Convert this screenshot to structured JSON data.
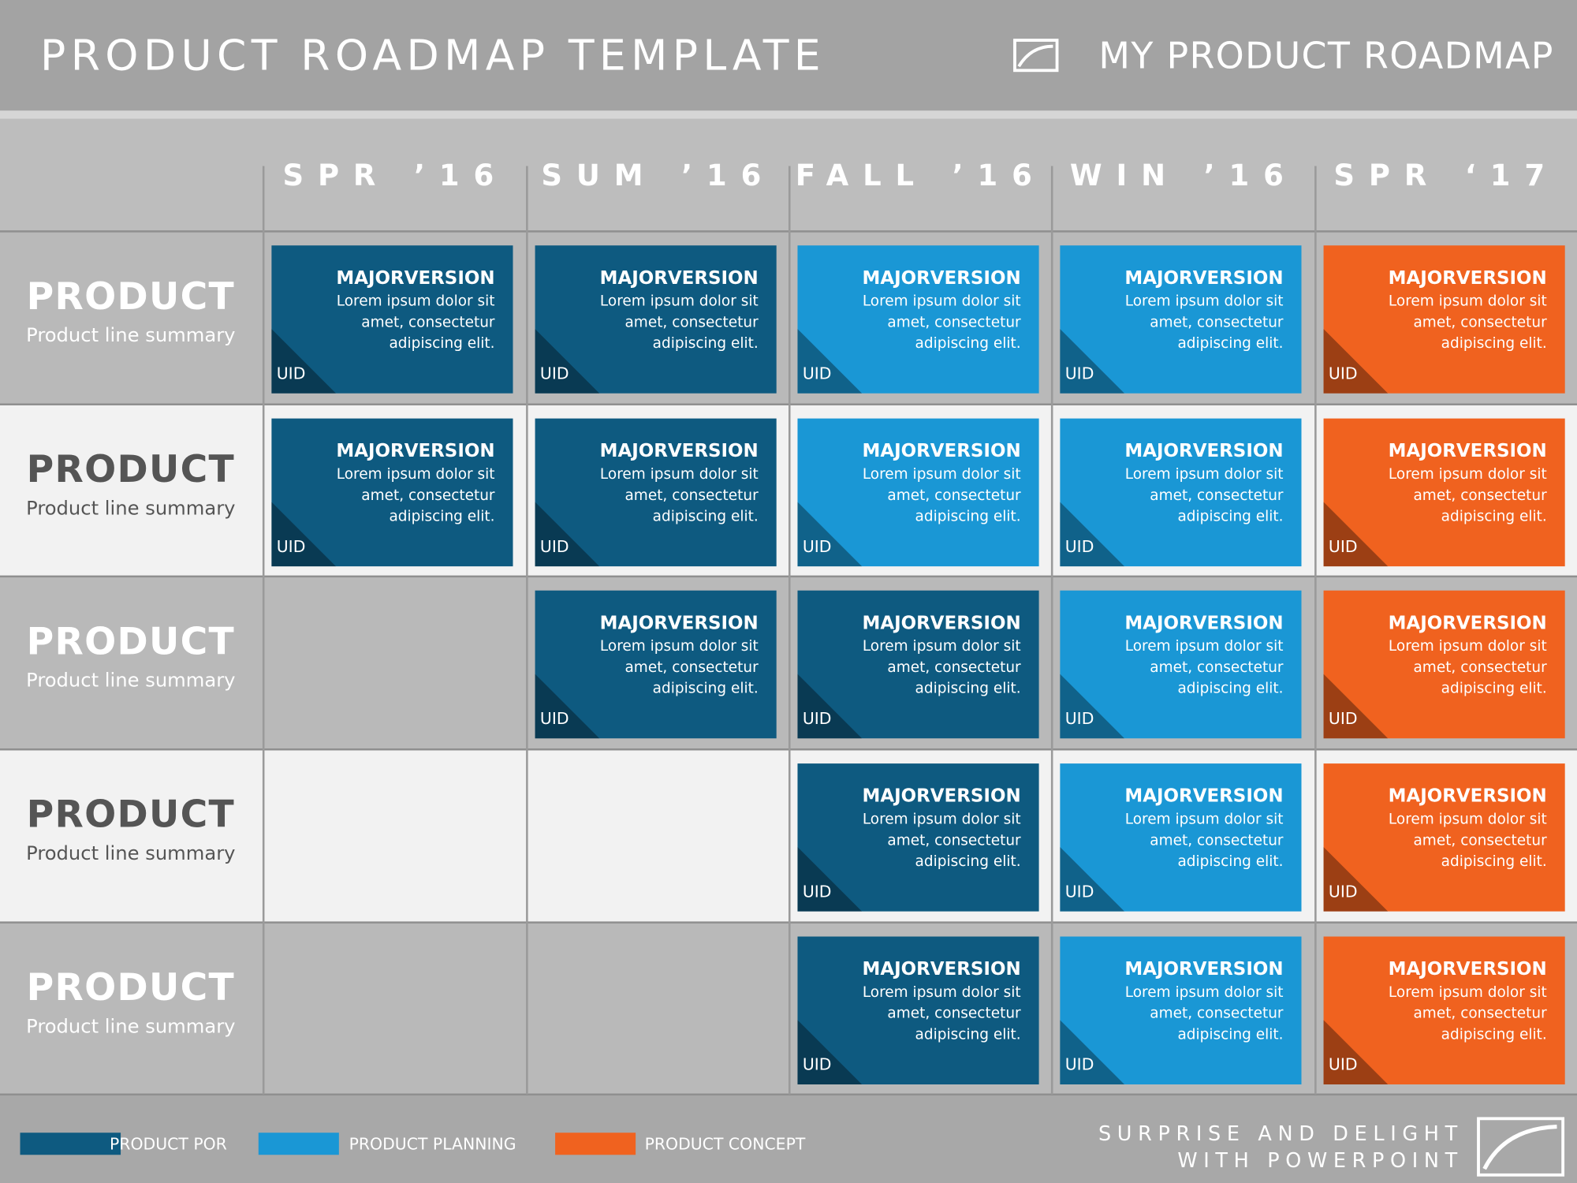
{
  "header": {
    "title": "PRODUCT ROADMAP TEMPLATE",
    "brand": "MY PRODUCT ROADMAP"
  },
  "columns": [
    "SPR ’16",
    "SUM ’16",
    "FALL ’16",
    "WIN ’16",
    "SPR ‘17"
  ],
  "rows": [
    {
      "title": "PRODUCT",
      "summary": "Product line summary",
      "cells": [
        {
          "title": "MAJORVERSION",
          "lines": [
            "Lorem ipsum dolor sit",
            "amet, consectetur",
            "adipiscing elit."
          ],
          "uid": "UID",
          "color": "#0e5a80"
        },
        {
          "title": "MAJORVERSION",
          "lines": [
            "Lorem ipsum dolor sit",
            "amet, consectetur",
            "adipiscing elit."
          ],
          "uid": "UID",
          "color": "#0e5a80"
        },
        {
          "title": "MAJORVERSION",
          "lines": [
            "Lorem ipsum dolor sit",
            "amet, consectetur",
            "adipiscing elit."
          ],
          "uid": "UID",
          "color": "#1a97d5"
        },
        {
          "title": "MAJORVERSION",
          "lines": [
            "Lorem ipsum dolor sit",
            "amet, consectetur",
            "adipiscing elit."
          ],
          "uid": "UID",
          "color": "#1a97d5"
        },
        {
          "title": "MAJORVERSION",
          "lines": [
            "Lorem ipsum dolor sit",
            "amet, consectetur",
            "adipiscing elit."
          ],
          "uid": "UID",
          "color": "#f0621f"
        }
      ]
    },
    {
      "title": "PRODUCT",
      "summary": "Product line summary",
      "cells": [
        {
          "title": "MAJORVERSION",
          "lines": [
            "Lorem ipsum dolor sit",
            "amet, consectetur",
            "adipiscing elit."
          ],
          "uid": "UID",
          "color": "#0e5a80"
        },
        {
          "title": "MAJORVERSION",
          "lines": [
            "Lorem ipsum dolor sit",
            "amet, consectetur",
            "adipiscing elit."
          ],
          "uid": "UID",
          "color": "#0e5a80"
        },
        {
          "title": "MAJORVERSION",
          "lines": [
            "Lorem ipsum dolor sit",
            "amet, consectetur",
            "adipiscing elit."
          ],
          "uid": "UID",
          "color": "#1a97d5"
        },
        {
          "title": "MAJORVERSION",
          "lines": [
            "Lorem ipsum dolor sit",
            "amet, consectetur",
            "adipiscing elit."
          ],
          "uid": "UID",
          "color": "#1a97d5"
        },
        {
          "title": "MAJORVERSION",
          "lines": [
            "Lorem ipsum dolor sit",
            "amet, consectetur",
            "adipiscing elit."
          ],
          "uid": "UID",
          "color": "#f0621f"
        }
      ]
    },
    {
      "title": "PRODUCT",
      "summary": "Product line summary",
      "cells": [
        null,
        {
          "title": "MAJORVERSION",
          "lines": [
            "Lorem ipsum dolor sit",
            "amet, consectetur",
            "adipiscing elit."
          ],
          "uid": "UID",
          "color": "#0e5a80"
        },
        {
          "title": "MAJORVERSION",
          "lines": [
            "Lorem ipsum dolor sit",
            "amet, consectetur",
            "adipiscing elit."
          ],
          "uid": "UID",
          "color": "#0e5a80"
        },
        {
          "title": "MAJORVERSION",
          "lines": [
            "Lorem ipsum dolor sit",
            "amet, consectetur",
            "adipiscing elit."
          ],
          "uid": "UID",
          "color": "#1a97d5"
        },
        {
          "title": "MAJORVERSION",
          "lines": [
            "Lorem ipsum dolor sit",
            "amet, consectetur",
            "adipiscing elit."
          ],
          "uid": "UID",
          "color": "#f0621f"
        }
      ]
    },
    {
      "title": "PRODUCT",
      "summary": "Product line summary",
      "cells": [
        null,
        null,
        {
          "title": "MAJORVERSION",
          "lines": [
            "Lorem ipsum dolor sit",
            "amet, consectetur",
            "adipiscing elit."
          ],
          "uid": "UID",
          "color": "#0e5a80"
        },
        {
          "title": "MAJORVERSION",
          "lines": [
            "Lorem ipsum dolor sit",
            "amet, consectetur",
            "adipiscing elit."
          ],
          "uid": "UID",
          "color": "#1a97d5"
        },
        {
          "title": "MAJORVERSION",
          "lines": [
            "Lorem ipsum dolor sit",
            "amet, consectetur",
            "adipiscing elit."
          ],
          "uid": "UID",
          "color": "#f0621f"
        }
      ]
    },
    {
      "title": "PRODUCT",
      "summary": "Product line summary",
      "cells": [
        null,
        null,
        {
          "title": "MAJORVERSION",
          "lines": [
            "Lorem ipsum dolor sit",
            "amet, consectetur",
            "adipiscing elit."
          ],
          "uid": "UID",
          "color": "#0e5a80"
        },
        {
          "title": "MAJORVERSION",
          "lines": [
            "Lorem ipsum dolor sit",
            "amet, consectetur",
            "adipiscing elit."
          ],
          "uid": "UID",
          "color": "#1a97d5"
        },
        {
          "title": "MAJORVERSION",
          "lines": [
            "Lorem ipsum dolor sit",
            "amet, consectetur",
            "adipiscing elit."
          ],
          "uid": "UID",
          "color": "#f0621f"
        }
      ]
    }
  ],
  "legend": [
    {
      "label": "PRODUCT POR",
      "color": "#0e5a80"
    },
    {
      "label": "PRODUCT PLANNING",
      "color": "#1a97d5"
    },
    {
      "label": "PRODUCT CONCEPT",
      "color": "#f0621f"
    }
  ],
  "footer": {
    "lines": [
      "SURPRISE AND DELIGHT",
      "WITH POWERPOINT"
    ]
  }
}
